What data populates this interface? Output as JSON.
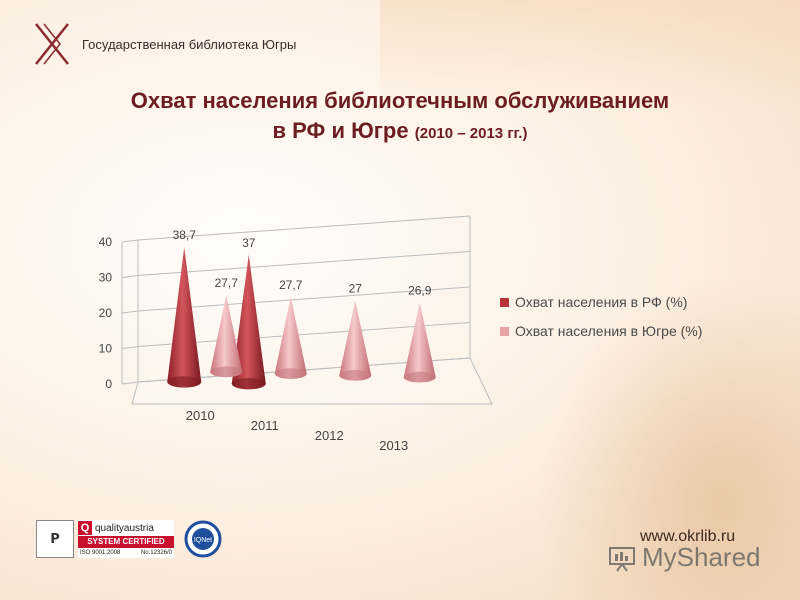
{
  "header": {
    "org_name": "Государственная библиотека Югры",
    "logo_icon": "library-logo-icon"
  },
  "title": {
    "line1": "Охват населения библиотечным обслуживанием",
    "line2_main": "в РФ и Югре",
    "line2_sub": "(2010 – 2013 гг.)"
  },
  "chart_data": {
    "type": "bar",
    "style": "3d-cone",
    "title": "Охват населения библиотечным обслуживанием в РФ и Югре (2010 – 2013 гг.)",
    "categories": [
      "2010",
      "2011",
      "2012",
      "2013"
    ],
    "series": [
      {
        "name": "Охват населения в РФ (%)",
        "color": "#b8323a",
        "values": [
          38.7,
          37,
          null,
          null
        ],
        "labels": [
          "38,7",
          "37",
          "",
          ""
        ]
      },
      {
        "name": "Охват населения в Югре (%)",
        "color": "#e8a2a6",
        "values": [
          27.7,
          27.7,
          27,
          26.9
        ],
        "labels": [
          "27,7",
          "27,7",
          "27",
          "26,9"
        ]
      }
    ],
    "ylim": [
      0,
      40
    ],
    "yticks": [
      "0",
      "10",
      "20",
      "30",
      "40"
    ],
    "grid": true,
    "legend_position": "right"
  },
  "legend": {
    "items": [
      {
        "label": "Охват населения в РФ (%)",
        "color": "#b8323a"
      },
      {
        "label": "Охват населения в Югре (%)",
        "color": "#e8a2a6"
      }
    ]
  },
  "footer": {
    "cert1": "P",
    "quality_brand": "qualityaustria",
    "quality_cert": "SYSTEM CERTIFIED",
    "quality_iso": "ISO 9001:2008",
    "quality_no": "No.12326/0",
    "iqnet": "IQNet",
    "site_url": "www.okrlib.ru",
    "watermark": "MyShared"
  }
}
